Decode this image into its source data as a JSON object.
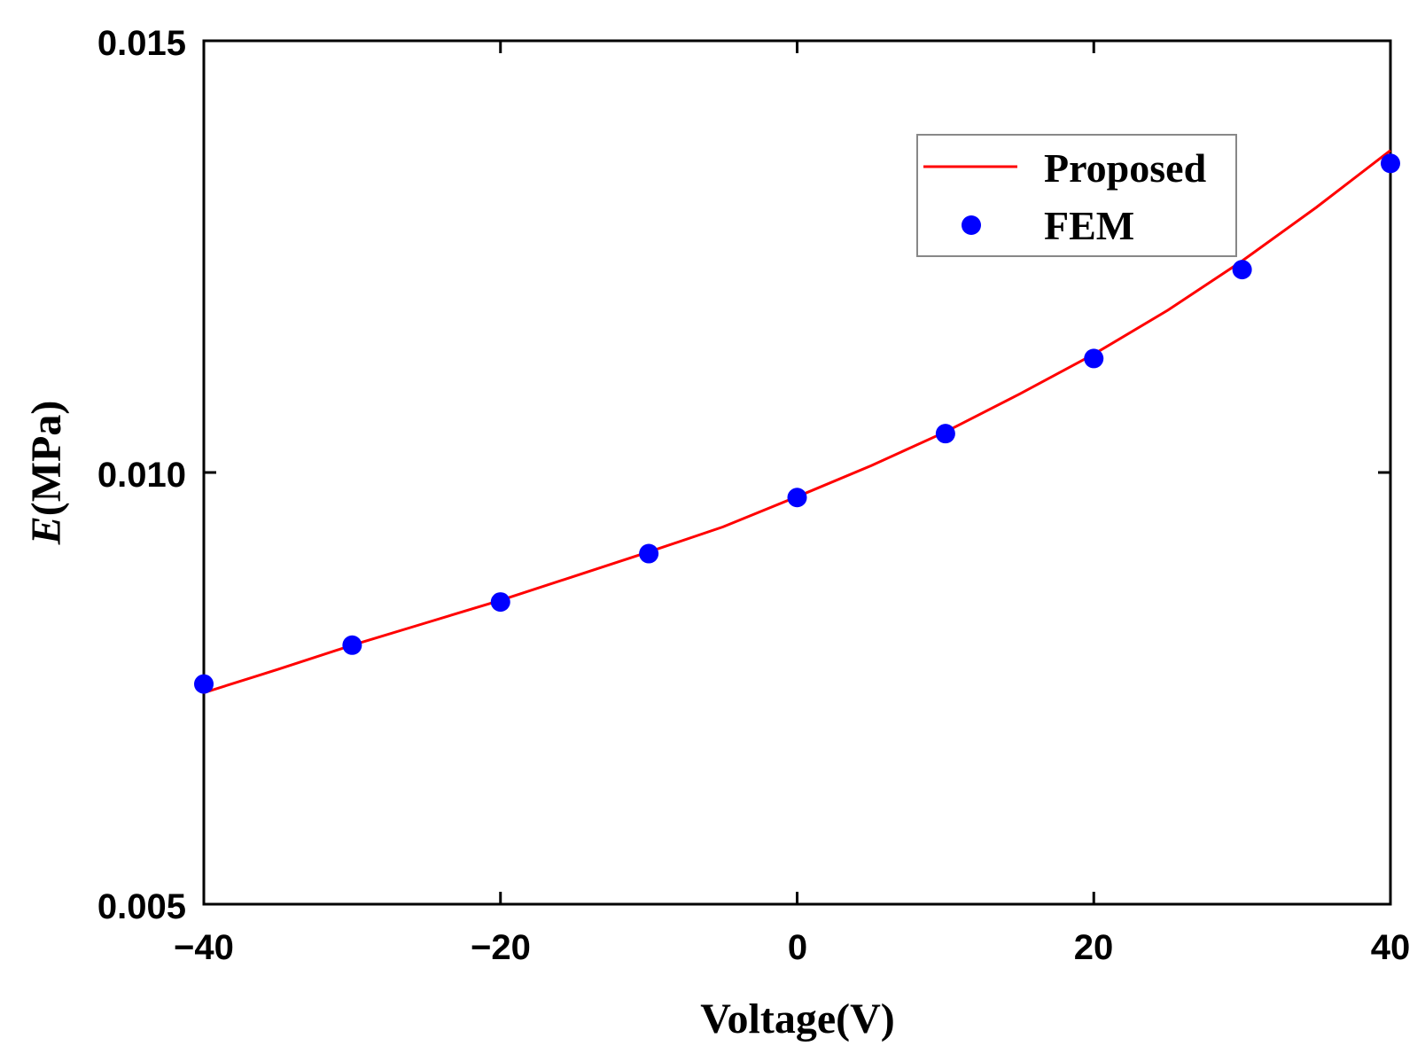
{
  "chart_data": {
    "type": "line",
    "title": "",
    "xlabel": "Voltage(V)",
    "ylabel_italic": "E",
    "ylabel_unit": "(MPa)",
    "xlim": [
      -40,
      40
    ],
    "ylim": [
      0.005,
      0.015
    ],
    "xticks": [
      -40,
      -20,
      0,
      20,
      40
    ],
    "xtick_labels": [
      "−40",
      "−20",
      "0",
      "20",
      "40"
    ],
    "yticks": [
      0.005,
      0.01,
      0.015
    ],
    "ytick_labels": [
      "0.005",
      "0.010",
      "0.015"
    ],
    "grid": false,
    "legend_position": "top-right",
    "series": [
      {
        "name": "Proposed",
        "kind": "line",
        "color": "#ff0000",
        "x": [
          -40,
          -35,
          -30,
          -25,
          -20,
          -15,
          -10,
          -5,
          0,
          5,
          10,
          15,
          20,
          25,
          30,
          35,
          40
        ],
        "y": [
          0.00745,
          0.00772,
          0.008,
          0.00826,
          0.00852,
          0.0088,
          0.00908,
          0.00937,
          0.00972,
          0.01008,
          0.01047,
          0.01091,
          0.01137,
          0.01188,
          0.01245,
          0.01307,
          0.01373
        ]
      },
      {
        "name": "FEM",
        "kind": "scatter",
        "color": "#0000ff",
        "x": [
          -40,
          -30,
          -20,
          -10,
          0,
          10,
          20,
          30,
          40
        ],
        "y": [
          0.00755,
          0.008,
          0.0085,
          0.00906,
          0.00971,
          0.01045,
          0.01132,
          0.01235,
          0.01358
        ]
      }
    ]
  }
}
